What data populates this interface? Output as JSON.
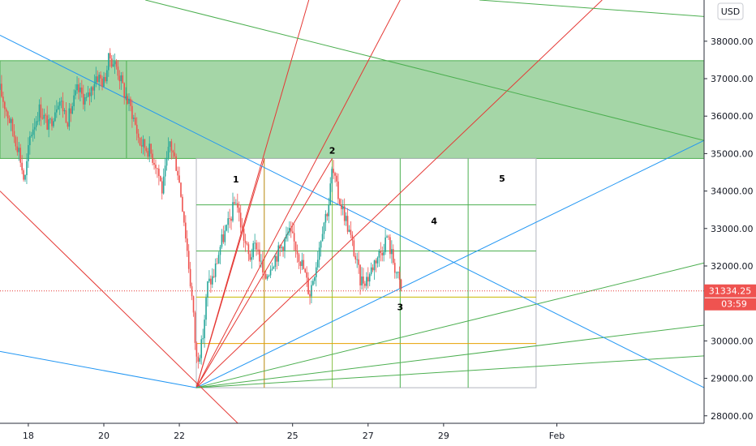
{
  "chart_data": {
    "type": "candlestick",
    "currency": "USD",
    "price_label": "31334.25",
    "countdown_label": "03:59",
    "price_axis_ticks": [
      {
        "value": 28000,
        "label": "28000.00"
      },
      {
        "value": 29000,
        "label": "29000.00"
      },
      {
        "value": 30000,
        "label": "30000.00"
      },
      {
        "value": 31000,
        "label": "31000.00"
      },
      {
        "value": 32000,
        "label": "32000.00"
      },
      {
        "value": 33000,
        "label": "33000.00"
      },
      {
        "value": 34000,
        "label": "34000.00"
      },
      {
        "value": 35000,
        "label": "35000.00"
      },
      {
        "value": 36000,
        "label": "36000.00"
      },
      {
        "value": 37000,
        "label": "37000.00"
      },
      {
        "value": 38000,
        "label": "38000.00"
      }
    ],
    "time_axis_ticks": [
      {
        "day": 18,
        "label": "18"
      },
      {
        "day": 20,
        "label": "20"
      },
      {
        "day": 22,
        "label": "22"
      },
      {
        "day": 25,
        "label": "25"
      },
      {
        "day": 27,
        "label": "27"
      },
      {
        "day": 29,
        "label": "29"
      },
      {
        "day": 32,
        "label": "Feb"
      }
    ],
    "y_range": [
      27800,
      39100
    ],
    "x_range": [
      17.25,
      35.9
    ],
    "current_price": 31334.25,
    "resistance_zone": {
      "low": 34870,
      "high": 37480,
      "day_start": 17.25,
      "day_end": 35.9,
      "inner_mark_day": 20.6,
      "color": "#a5d6a7"
    },
    "gann_box": {
      "day_start": 22.45,
      "day_end": 31.45,
      "price_low": 28750,
      "price_high": 34870,
      "v_lines": [
        {
          "day": 24.25,
          "color": "#b8860b"
        },
        {
          "day": 26.05,
          "color": "#8bc34a"
        },
        {
          "day": 27.85,
          "color": "#4caf50"
        },
        {
          "day": 29.65,
          "color": "#4caf50"
        }
      ],
      "h_lines": [
        {
          "price": 29930,
          "color": "#e6a000"
        },
        {
          "price": 31170,
          "color": "#c7b800"
        },
        {
          "price": 32400,
          "color": "#4caf50"
        },
        {
          "price": 33630,
          "color": "#4caf50"
        }
      ]
    },
    "fan_origin": {
      "day": 22.45,
      "price": 28750
    },
    "fan_lines": [
      {
        "day": 25.43,
        "price": 39100,
        "color": "#e53935"
      },
      {
        "day": 27.85,
        "price": 39100,
        "color": "#e53935"
      },
      {
        "day": 33.2,
        "price": 39100,
        "color": "#e53935"
      },
      {
        "day": 26.05,
        "price": 34870,
        "color": "#e53935"
      },
      {
        "day": 24.25,
        "price": 34870,
        "color": "#e53935"
      },
      {
        "day": 35.9,
        "price": 35350,
        "color": "#2196f3"
      },
      {
        "day": 35.9,
        "price": 32080,
        "color": "#4caf50"
      },
      {
        "day": 35.9,
        "price": 30420,
        "color": "#4caf50"
      },
      {
        "day": 35.9,
        "price": 29600,
        "color": "#4caf50"
      }
    ],
    "trend_lines": [
      {
        "from": {
          "day": 17.25,
          "price": 38160
        },
        "to": {
          "day": 35.9,
          "price": 28750
        },
        "color": "#2196f3"
      },
      {
        "from": {
          "day": 17.25,
          "price": 29720
        },
        "to": {
          "day": 22.45,
          "price": 28750
        },
        "color": "#2196f3"
      },
      {
        "from": {
          "day": 17.25,
          "price": 34000
        },
        "to": {
          "day": 23.55,
          "price": 27800
        },
        "color": "#e53935"
      },
      {
        "from": {
          "day": 21.1,
          "price": 39100
        },
        "to": {
          "day": 35.9,
          "price": 35350
        },
        "color": "#4caf50"
      },
      {
        "from": {
          "day": 29.95,
          "price": 39100
        },
        "to": {
          "day": 35.9,
          "price": 38660
        },
        "color": "#4caf50"
      }
    ],
    "wave_labels": [
      {
        "label": "1",
        "day": 23.5,
        "price": 34230
      },
      {
        "label": "2",
        "day": 26.05,
        "price": 35000
      },
      {
        "label": "3",
        "day": 27.85,
        "price": 30820
      },
      {
        "label": "4",
        "day": 28.75,
        "price": 33110
      },
      {
        "label": "5",
        "day": 30.55,
        "price": 34250
      }
    ],
    "price_path": [
      [
        17.25,
        36700
      ],
      [
        17.5,
        35900
      ],
      [
        17.75,
        35100
      ],
      [
        17.9,
        34200
      ],
      [
        18.05,
        35500
      ],
      [
        18.3,
        36200
      ],
      [
        18.55,
        35700
      ],
      [
        18.8,
        36500
      ],
      [
        19.05,
        35900
      ],
      [
        19.3,
        36700
      ],
      [
        19.55,
        36400
      ],
      [
        19.8,
        37100
      ],
      [
        20.0,
        36900
      ],
      [
        20.15,
        37600
      ],
      [
        20.35,
        37300
      ],
      [
        20.55,
        36600
      ],
      [
        20.75,
        36100
      ],
      [
        20.95,
        35300
      ],
      [
        21.2,
        35100
      ],
      [
        21.4,
        34700
      ],
      [
        21.55,
        34000
      ],
      [
        21.75,
        35300
      ],
      [
        21.95,
        34600
      ],
      [
        22.1,
        33500
      ],
      [
        22.25,
        32000
      ],
      [
        22.35,
        31000
      ],
      [
        22.45,
        29500
      ],
      [
        22.6,
        29900
      ],
      [
        22.75,
        31500
      ],
      [
        22.9,
        31700
      ],
      [
        23.1,
        32600
      ],
      [
        23.3,
        33100
      ],
      [
        23.5,
        33800
      ],
      [
        23.65,
        33000
      ],
      [
        23.85,
        32200
      ],
      [
        24.05,
        32600
      ],
      [
        24.25,
        31600
      ],
      [
        24.45,
        32100
      ],
      [
        24.7,
        32500
      ],
      [
        24.9,
        32900
      ],
      [
        25.1,
        32500
      ],
      [
        25.3,
        31900
      ],
      [
        25.45,
        31250
      ],
      [
        25.65,
        32200
      ],
      [
        25.8,
        33100
      ],
      [
        25.95,
        33600
      ],
      [
        26.05,
        34600
      ],
      [
        26.2,
        33900
      ],
      [
        26.4,
        33300
      ],
      [
        26.6,
        32500
      ],
      [
        26.8,
        31600
      ],
      [
        27.0,
        31700
      ],
      [
        27.2,
        32200
      ],
      [
        27.35,
        32400
      ],
      [
        27.5,
        32800
      ],
      [
        27.65,
        32200
      ],
      [
        27.8,
        31650
      ],
      [
        27.88,
        31334
      ]
    ]
  }
}
